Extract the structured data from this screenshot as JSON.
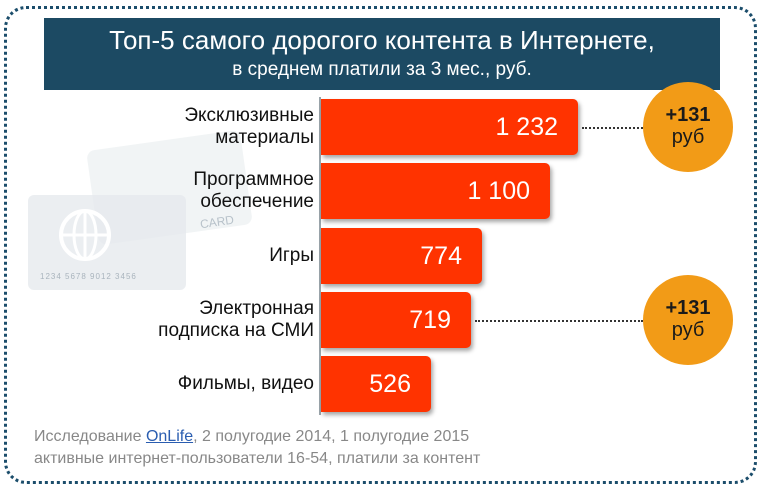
{
  "chart_data": {
    "type": "bar",
    "orientation": "horizontal",
    "title": "Топ-5 самого дорогого контента в Интернете,",
    "subtitle": "в среднем платили за 3 мес., руб.",
    "categories": [
      "Эксклюзивные\nматериалы",
      "Программное\nобеспечение",
      "Игры",
      "Электронная\nподписка на СМИ",
      "Фильмы, видео"
    ],
    "values": [
      1232,
      1100,
      774,
      719,
      526
    ],
    "value_labels": [
      "1 232",
      "1 100",
      "774",
      "719",
      "526"
    ],
    "xlim": [
      0,
      1400
    ],
    "bar_color": "#ff3300",
    "annotations": [
      {
        "category_index": 0,
        "line1": "+131",
        "line2": "руб"
      },
      {
        "category_index": 3,
        "line1": "+131",
        "line2": "руб"
      }
    ]
  },
  "background": {
    "card_text": "CARD",
    "card_number": "1234 5678 9012 3456"
  },
  "footnote": {
    "line1_prefix": "Исследование ",
    "line1_link": "OnLife",
    "line1_suffix": ", 2 полугодие 2014, 1 полугодие 2015",
    "line2": "активные интернет-пользователи 16-54, платили за контент"
  },
  "colors": {
    "title_bg": "#1c4a63",
    "badge": "#f29b17",
    "frame": "#1b4d6b"
  }
}
